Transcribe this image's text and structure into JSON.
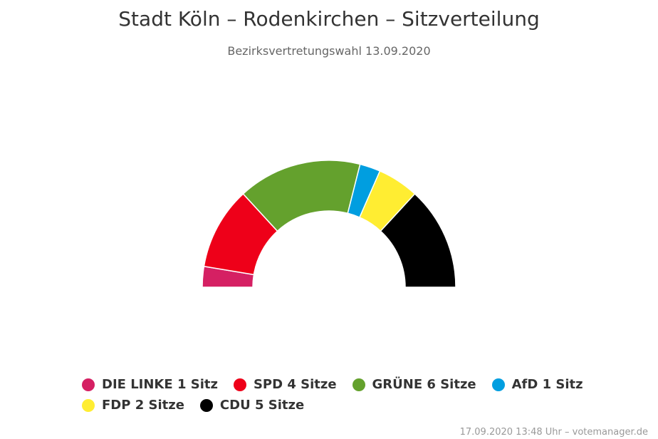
{
  "title": "Stadt Köln – Rodenkirchen – Sitzverteilung",
  "subtitle": "Bezirksvertretungswahl 13.09.2020",
  "credit": "17.09.2020 13:48 Uhr – votemanager.de",
  "chart_data": {
    "type": "pie",
    "variant": "semicircle-parliament",
    "title": "Stadt Köln – Rodenkirchen – Sitzverteilung",
    "subtitle": "Bezirksvertretungswahl 13.09.2020",
    "series": [
      {
        "name": "DIE LINKE",
        "value": 1,
        "label": "DIE LINKE 1 Sitz",
        "color": "#d52063"
      },
      {
        "name": "SPD",
        "value": 4,
        "label": "SPD 4 Sitze",
        "color": "#ee0019"
      },
      {
        "name": "GRÜNE",
        "value": 6,
        "label": "GRÜNE 6 Sitze",
        "color": "#64a12d"
      },
      {
        "name": "AfD",
        "value": 1,
        "label": "AfD 1 Sitz",
        "color": "#009ee0"
      },
      {
        "name": "FDP",
        "value": 2,
        "label": "FDP 2 Sitze",
        "color": "#ffed32"
      },
      {
        "name": "CDU",
        "value": 5,
        "label": "CDU 5 Sitze",
        "color": "#000000"
      }
    ],
    "legend_position": "bottom"
  }
}
